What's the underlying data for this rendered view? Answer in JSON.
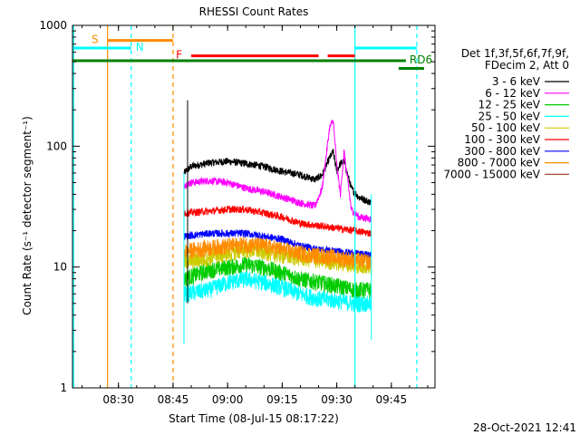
{
  "chart_data": {
    "type": "line",
    "title": "RHESSI Count Rates",
    "xlabel": "Start Time (08-Jul-15 08:17:22)",
    "ylabel": "Count Rate (s⁻¹ detector segment⁻¹)",
    "yscale": "log",
    "ylim": [
      1,
      1000
    ],
    "xlim": [
      "08:17:22",
      "09:57:00"
    ],
    "x_ticks": [
      "08:30",
      "08:45",
      "09:00",
      "09:15",
      "09:30",
      "09:45"
    ],
    "y_ticks": [
      "1",
      "10",
      "100",
      "1000"
    ],
    "grid": false,
    "legend_position": "right",
    "legend_header": [
      "Det 1f,3f,5f,6f,7f,9f,",
      "FDecim 2, Att 0"
    ],
    "footer_date": "28-Oct-2021 12:41",
    "data_window": [
      "08:48:00",
      "09:39:30"
    ],
    "flag_lines": [
      {
        "label": "S",
        "color": "#ff8c00",
        "y": 750,
        "start": "08:27:00",
        "end": "08:45:00"
      },
      {
        "label": "N",
        "color": "#00ffff",
        "y": 650,
        "start": "08:17:22",
        "end": "08:33:30"
      },
      {
        "label": "N",
        "color": "#00ffff",
        "y": 650,
        "start": "09:35:00",
        "end": "09:52:00"
      },
      {
        "label": "F",
        "color": "#ff0000",
        "y": 560,
        "start": "08:50:00",
        "end": "09:25:00"
      },
      {
        "label": "F",
        "color": "#ff0000",
        "y": 560,
        "start": "09:27:30",
        "end": "09:35:00"
      },
      {
        "label": "RD6",
        "color": "#008000",
        "y": 510,
        "start": "08:17:22",
        "end": "09:49:00"
      },
      {
        "label": "RD6",
        "color": "#008000",
        "y": 440,
        "start": "09:47:00",
        "end": "09:54:00"
      }
    ],
    "vertical_lines": [
      {
        "time": "08:17:40",
        "color": "#00ffff",
        "style": "solid"
      },
      {
        "time": "08:27:00",
        "color": "#ff8c00",
        "style": "solid"
      },
      {
        "time": "08:33:30",
        "color": "#00ffff",
        "style": "dashed"
      },
      {
        "time": "08:45:00",
        "color": "#ff8c00",
        "style": "dashed"
      },
      {
        "time": "09:35:00",
        "color": "#00ffff",
        "style": "solid"
      },
      {
        "time": "09:52:00",
        "color": "#00ffff",
        "style": "dashed"
      }
    ],
    "series": [
      {
        "name": "3 - 6 keV",
        "color": "#000000",
        "points": [
          [
            "08:48:00",
            60
          ],
          [
            "08:50:00",
            68
          ],
          [
            "08:55:00",
            73
          ],
          [
            "09:00:00",
            75
          ],
          [
            "09:05:00",
            72
          ],
          [
            "09:10:00",
            68
          ],
          [
            "09:15:00",
            62
          ],
          [
            "09:20:00",
            58
          ],
          [
            "09:24:00",
            53
          ],
          [
            "09:26:00",
            58
          ],
          [
            "09:28:00",
            80
          ],
          [
            "09:29:00",
            90
          ],
          [
            "09:30:00",
            62
          ],
          [
            "09:31:00",
            72
          ],
          [
            "09:32:00",
            75
          ],
          [
            "09:34:00",
            45
          ],
          [
            "09:36:00",
            38
          ],
          [
            "09:39:30",
            34
          ]
        ]
      },
      {
        "name": "6 - 12 keV",
        "color": "#ff00ff",
        "points": [
          [
            "08:48:00",
            48
          ],
          [
            "08:50:00",
            50
          ],
          [
            "08:55:00",
            52
          ],
          [
            "09:00:00",
            50
          ],
          [
            "09:05:00",
            45
          ],
          [
            "09:10:00",
            42
          ],
          [
            "09:15:00",
            38
          ],
          [
            "09:20:00",
            34
          ],
          [
            "09:24:00",
            32
          ],
          [
            "09:26:00",
            45
          ],
          [
            "09:28:00",
            140
          ],
          [
            "09:29:00",
            165
          ],
          [
            "09:30:00",
            70
          ],
          [
            "09:31:00",
            40
          ],
          [
            "09:32:00",
            90
          ],
          [
            "09:34:00",
            30
          ],
          [
            "09:36:00",
            26
          ],
          [
            "09:39:30",
            25
          ]
        ]
      },
      {
        "name": "12 - 25 keV",
        "color": "#00cc00",
        "points": [
          [
            "08:48:00",
            8
          ],
          [
            "08:55:00",
            9.5
          ],
          [
            "09:00:00",
            10
          ],
          [
            "09:05:00",
            10.5
          ],
          [
            "09:10:00",
            10
          ],
          [
            "09:15:00",
            9
          ],
          [
            "09:20:00",
            8
          ],
          [
            "09:25:00",
            7.5
          ],
          [
            "09:30:00",
            7
          ],
          [
            "09:35:00",
            6.5
          ],
          [
            "09:39:30",
            6.5
          ]
        ]
      },
      {
        "name": "25 - 50 keV",
        "color": "#00ffff",
        "points": [
          [
            "08:48:00",
            6
          ],
          [
            "08:55:00",
            6.5
          ],
          [
            "09:00:00",
            7.5
          ],
          [
            "09:05:00",
            8
          ],
          [
            "09:10:00",
            7.5
          ],
          [
            "09:15:00",
            6.8
          ],
          [
            "09:20:00",
            6
          ],
          [
            "09:25:00",
            5.5
          ],
          [
            "09:30:00",
            5.3
          ],
          [
            "09:35:00",
            5
          ],
          [
            "09:39:30",
            5
          ]
        ]
      },
      {
        "name": "50 - 100 keV",
        "color": "#cccc00",
        "points": [
          [
            "08:48:00",
            11
          ],
          [
            "08:55:00",
            12
          ],
          [
            "09:00:00",
            13
          ],
          [
            "09:05:00",
            14
          ],
          [
            "09:10:00",
            13.5
          ],
          [
            "09:15:00",
            12.5
          ],
          [
            "09:20:00",
            12
          ],
          [
            "09:25:00",
            11.5
          ],
          [
            "09:30:00",
            11
          ],
          [
            "09:35:00",
            10.5
          ],
          [
            "09:39:30",
            10
          ]
        ]
      },
      {
        "name": "100 - 300 keV",
        "color": "#ff0000",
        "points": [
          [
            "08:48:00",
            28
          ],
          [
            "08:55:00",
            29
          ],
          [
            "09:00:00",
            30
          ],
          [
            "09:05:00",
            30
          ],
          [
            "09:10:00",
            28
          ],
          [
            "09:15:00",
            26
          ],
          [
            "09:20:00",
            23
          ],
          [
            "09:25:00",
            22
          ],
          [
            "09:30:00",
            21
          ],
          [
            "09:35:00",
            20
          ],
          [
            "09:39:30",
            19
          ]
        ]
      },
      {
        "name": "300 - 800 keV",
        "color": "#0000ff",
        "points": [
          [
            "08:48:00",
            18
          ],
          [
            "08:55:00",
            19
          ],
          [
            "09:00:00",
            19
          ],
          [
            "09:05:00",
            19
          ],
          [
            "09:10:00",
            18
          ],
          [
            "09:15:00",
            17
          ],
          [
            "09:20:00",
            15
          ],
          [
            "09:25:00",
            14
          ],
          [
            "09:30:00",
            13.5
          ],
          [
            "09:35:00",
            13
          ],
          [
            "09:39:30",
            12.5
          ]
        ]
      },
      {
        "name": "800 - 7000 keV",
        "color": "#ff8c00",
        "points": [
          [
            "08:48:00",
            13.5
          ],
          [
            "08:55:00",
            14.5
          ],
          [
            "09:00:00",
            15
          ],
          [
            "09:05:00",
            15.5
          ],
          [
            "09:10:00",
            15
          ],
          [
            "09:15:00",
            14
          ],
          [
            "09:20:00",
            13
          ],
          [
            "09:25:00",
            12.5
          ],
          [
            "09:30:00",
            12
          ],
          [
            "09:35:00",
            11.5
          ],
          [
            "09:39:30",
            11
          ]
        ]
      },
      {
        "name": "7000 - 15000 keV",
        "color": "#a0522d",
        "points": []
      }
    ]
  }
}
